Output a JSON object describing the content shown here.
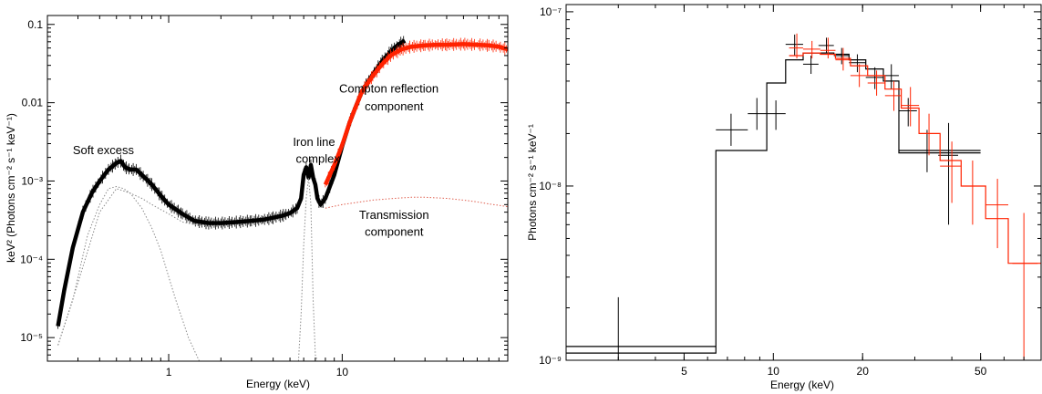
{
  "colors": {
    "black": "#000000",
    "red": "#ff2200",
    "grey": "#8a8a8a",
    "red_dotted": "#e06050"
  },
  "chart_data": [
    {
      "type": "line",
      "xlabel": "Energy (keV)",
      "ylabel": "keV² (Photons cm⁻² s⁻¹ keV⁻¹)",
      "x_scale": "log",
      "y_scale": "log",
      "xlim": [
        0.2,
        90
      ],
      "ylim": [
        5e-06,
        0.13
      ],
      "x_ticks": [
        {
          "v": 1,
          "label": "1"
        },
        {
          "v": 10,
          "label": "10"
        }
      ],
      "y_ticks": [
        {
          "v": 0.1,
          "label": "0.1"
        },
        {
          "v": 0.01,
          "label": "0.01"
        },
        {
          "v": 0.001,
          "label": "10⁻³"
        },
        {
          "v": 0.0001,
          "label": "10⁻⁴"
        },
        {
          "v": 1e-05,
          "label": "10⁻⁵"
        }
      ],
      "annotations": [
        {
          "text": "Soft excess",
          "x": 0.28,
          "y": 0.0022
        },
        {
          "text": "Iron line",
          "x": 5.2,
          "y": 0.0028
        },
        {
          "text": "complex",
          "x": 5.4,
          "y": 0.0017
        },
        {
          "text": "Compton reflection",
          "x": 9.6,
          "y": 0.0135
        },
        {
          "text": "component",
          "x": 13.5,
          "y": 0.008
        },
        {
          "text": "Transmission",
          "x": 12.5,
          "y": 0.00033
        },
        {
          "text": "component",
          "x": 13.5,
          "y": 0.0002
        }
      ],
      "series": [
        {
          "color": "black",
          "style": "data",
          "x": [
            0.23,
            0.25,
            0.28,
            0.32,
            0.36,
            0.4,
            0.45,
            0.5,
            0.53,
            0.56,
            0.6,
            0.65,
            0.7,
            0.8,
            0.9,
            1.0,
            1.2,
            1.4,
            1.7,
            2.0,
            2.5,
            3.0,
            3.5,
            4.0,
            4.5,
            5.0,
            5.5,
            5.8,
            6.0,
            6.2,
            6.4,
            6.6,
            6.8,
            7.0,
            7.2,
            7.5,
            8.0,
            9.0,
            10,
            11,
            12,
            13,
            15,
            17,
            19,
            21,
            23
          ],
          "y": [
            1.4e-05,
            4e-05,
            0.00014,
            0.0004,
            0.0007,
            0.001,
            0.0014,
            0.0017,
            0.0018,
            0.0015,
            0.0014,
            0.0014,
            0.0012,
            0.0009,
            0.00065,
            0.0005,
            0.00038,
            0.00031,
            0.00029,
            0.00029,
            0.0003,
            0.00031,
            0.00032,
            0.00034,
            0.00036,
            0.00039,
            0.00045,
            0.0006,
            0.0012,
            0.0015,
            0.0011,
            0.0016,
            0.0011,
            0.0009,
            0.0006,
            0.0005,
            0.0006,
            0.0012,
            0.0028,
            0.0055,
            0.009,
            0.014,
            0.023,
            0.034,
            0.045,
            0.055,
            0.062
          ]
        },
        {
          "color": "red",
          "style": "data",
          "x": [
            8.0,
            9.0,
            10,
            11,
            12,
            13,
            15,
            17,
            19,
            22,
            25,
            30,
            35,
            40,
            50,
            60,
            70,
            80,
            90
          ],
          "y": [
            0.0009,
            0.0016,
            0.0029,
            0.0055,
            0.009,
            0.014,
            0.022,
            0.031,
            0.04,
            0.048,
            0.052,
            0.054,
            0.055,
            0.055,
            0.056,
            0.055,
            0.054,
            0.052,
            0.048
          ]
        },
        {
          "color": "grey",
          "style": "dotted",
          "x": [
            0.23,
            0.28,
            0.34,
            0.4,
            0.45,
            0.5,
            0.55,
            0.6,
            0.7,
            0.8,
            0.9,
            1.0,
            1.1,
            1.2,
            1.3,
            1.4,
            1.5
          ],
          "y": [
            8e-06,
            3e-05,
            0.0002,
            0.0005,
            0.0008,
            0.00085,
            0.0008,
            0.0007,
            0.00045,
            0.00025,
            0.00013,
            6e-05,
            3e-05,
            1.7e-05,
            1e-05,
            7e-06,
            5e-06
          ]
        },
        {
          "color": "grey",
          "style": "dotted",
          "x": [
            0.23,
            0.3,
            0.4,
            0.5,
            0.6,
            0.7,
            0.8,
            1.0,
            1.2,
            1.5,
            2.0
          ],
          "y": [
            8e-06,
            5e-05,
            0.0004,
            0.0008,
            0.0007,
            0.0006,
            0.0005,
            0.00038,
            0.0003,
            0.00027,
            0.00027
          ]
        },
        {
          "color": "grey",
          "style": "dotted",
          "x": [
            5.6,
            5.8,
            6.0,
            6.2,
            6.4,
            6.6,
            6.8,
            7.0,
            7.2
          ],
          "y": [
            5e-06,
            2e-05,
            0.00015,
            0.0006,
            0.0011,
            0.0005,
            3e-05,
            6e-06,
            5e-06
          ]
        },
        {
          "color": "red_dotted",
          "style": "dotted",
          "x": [
            8.0,
            10,
            12,
            15,
            20,
            25,
            30,
            40,
            50,
            60,
            70,
            80,
            90
          ],
          "y": [
            0.00045,
            0.0005,
            0.00053,
            0.00057,
            0.0006,
            0.00062,
            0.00062,
            0.0006,
            0.00057,
            0.00054,
            0.00051,
            0.00049,
            0.00047
          ]
        }
      ]
    },
    {
      "type": "line",
      "xlabel": "Energy (keV)",
      "ylabel": "Photons cm⁻² s⁻¹ keV⁻¹",
      "x_scale": "log",
      "y_scale": "log",
      "xlim": [
        2.0,
        80
      ],
      "ylim": [
        1e-09,
        1.1e-07
      ],
      "x_ticks": [
        {
          "v": 5,
          "label": "5"
        },
        {
          "v": 10,
          "label": "10"
        },
        {
          "v": 20,
          "label": "20"
        },
        {
          "v": 50,
          "label": "50"
        }
      ],
      "y_ticks": [
        {
          "v": 1e-07,
          "label": "10⁻⁷"
        },
        {
          "v": 1e-08,
          "label": "10⁻⁸"
        },
        {
          "v": 1e-09,
          "label": "10⁻⁹"
        }
      ],
      "series": [
        {
          "color": "black",
          "style": "errorbars",
          "points": [
            {
              "x": 3.0,
              "y": 1.05e-09,
              "xlo": 3.0,
              "xhi": 3.0,
              "ylo": 1e-09,
              "yhi": 2.3e-09
            },
            {
              "x": 7.2,
              "y": 2.1e-08,
              "xlo": 6.4,
              "xhi": 8.2,
              "ylo": 1.7e-08,
              "yhi": 2.6e-08
            },
            {
              "x": 8.8,
              "y": 2.6e-08,
              "xlo": 8.2,
              "xhi": 9.5,
              "ylo": 2.1e-08,
              "yhi": 3.2e-08
            },
            {
              "x": 10.2,
              "y": 2.6e-08,
              "xlo": 9.5,
              "xhi": 11.0,
              "ylo": 2.1e-08,
              "yhi": 3.1e-08
            },
            {
              "x": 11.8,
              "y": 6.5e-08,
              "xlo": 11.0,
              "xhi": 12.6,
              "ylo": 5.6e-08,
              "yhi": 7.4e-08
            },
            {
              "x": 13.4,
              "y": 5e-08,
              "xlo": 12.6,
              "xhi": 14.2,
              "ylo": 4.4e-08,
              "yhi": 5.6e-08
            },
            {
              "x": 15.1,
              "y": 6.4e-08,
              "xlo": 14.2,
              "xhi": 16.0,
              "ylo": 5.8e-08,
              "yhi": 7.1e-08
            },
            {
              "x": 17.0,
              "y": 5.6e-08,
              "xlo": 16.0,
              "xhi": 18.0,
              "ylo": 5e-08,
              "yhi": 6.2e-08
            },
            {
              "x": 19.2,
              "y": 5.1e-08,
              "xlo": 18.0,
              "xhi": 20.5,
              "ylo": 4.5e-08,
              "yhi": 5.7e-08
            },
            {
              "x": 22.0,
              "y": 4.2e-08,
              "xlo": 20.5,
              "xhi": 23.5,
              "ylo": 3.6e-08,
              "yhi": 4.8e-08
            },
            {
              "x": 25.0,
              "y": 4.3e-08,
              "xlo": 23.5,
              "xhi": 26.5,
              "ylo": 3.6e-08,
              "yhi": 5e-08
            },
            {
              "x": 28.5,
              "y": 2.7e-08,
              "xlo": 26.5,
              "xhi": 30.5,
              "ylo": 2.2e-08,
              "yhi": 3.2e-08
            },
            {
              "x": 33.0,
              "y": 1.6e-08,
              "xlo": 30.5,
              "xhi": 36.0,
              "ylo": 1.2e-08,
              "yhi": 2.1e-08
            },
            {
              "x": 39.0,
              "y": 1.5e-08,
              "xlo": 36.0,
              "xhi": 42.0,
              "ylo": 6e-09,
              "yhi": 2.3e-08
            }
          ],
          "step": {
            "edges": [
              1.0,
              6.4,
              9.5,
              11.0,
              12.6,
              14.2,
              16.0,
              18.0,
              20.5,
              23.5,
              26.5,
              50.0
            ],
            "values": [
              1.1e-09,
              1.6e-08,
              3.9e-08,
              5.3e-08,
              5.8e-08,
              5.8e-08,
              5.7e-08,
              5.3e-08,
              4.7e-08,
              4e-08,
              1.55e-08
            ]
          },
          "step_extra": [
            {
              "edges": [
                1.0,
                6.4
              ],
              "values": [
                1.2e-09
              ]
            },
            {
              "edges": [
                26.5,
                50.0
              ],
              "values": [
                1.6e-08
              ]
            }
          ]
        },
        {
          "color": "red",
          "style": "errorbars",
          "points": [
            {
              "x": 12.0,
              "y": 6.2e-08,
              "xlo": 11.3,
              "xhi": 12.6,
              "ylo": 5.4e-08,
              "yhi": 7.5e-08
            },
            {
              "x": 13.5,
              "y": 6.1e-08,
              "xlo": 12.6,
              "xhi": 14.4,
              "ylo": 5.4e-08,
              "yhi": 6.8e-08
            },
            {
              "x": 15.3,
              "y": 6e-08,
              "xlo": 14.4,
              "xhi": 16.2,
              "ylo": 5.4e-08,
              "yhi": 7.1e-08
            },
            {
              "x": 17.2,
              "y": 5.3e-08,
              "xlo": 16.2,
              "xhi": 18.2,
              "ylo": 4.6e-08,
              "yhi": 6.2e-08
            },
            {
              "x": 19.5,
              "y": 4.3e-08,
              "xlo": 18.2,
              "xhi": 20.8,
              "ylo": 3.7e-08,
              "yhi": 5e-08
            },
            {
              "x": 22.3,
              "y": 3.9e-08,
              "xlo": 20.8,
              "xhi": 23.8,
              "ylo": 3.3e-08,
              "yhi": 4.6e-08
            },
            {
              "x": 25.5,
              "y": 3.3e-08,
              "xlo": 23.8,
              "xhi": 27.0,
              "ylo": 2.7e-08,
              "yhi": 4e-08
            },
            {
              "x": 29.0,
              "y": 2.9e-08,
              "xlo": 27.0,
              "xhi": 31.0,
              "ylo": 2.2e-08,
              "yhi": 3.7e-08
            },
            {
              "x": 33.5,
              "y": 2e-08,
              "xlo": 31.0,
              "xhi": 36.5,
              "ylo": 1.5e-08,
              "yhi": 2.6e-08
            },
            {
              "x": 40.0,
              "y": 1.3e-08,
              "xlo": 36.5,
              "xhi": 43.0,
              "ylo": 8e-09,
              "yhi": 1.8e-08
            },
            {
              "x": 47.0,
              "y": 1e-08,
              "xlo": 43.0,
              "xhi": 52.0,
              "ylo": 6e-09,
              "yhi": 1.4e-08
            },
            {
              "x": 57.0,
              "y": 7.8e-09,
              "xlo": 52.0,
              "xhi": 62.0,
              "ylo": 4.4e-09,
              "yhi": 1.1e-08
            },
            {
              "x": 70.0,
              "y": 3.6e-09,
              "xlo": 64.0,
              "xhi": 78.0,
              "ylo": 1e-09,
              "yhi": 7e-09
            }
          ],
          "step": {
            "edges": [
              11.3,
              12.6,
              14.4,
              16.2,
              18.2,
              20.8,
              23.8,
              27.0,
              31.0,
              36.5,
              43.0,
              52.0,
              62.0,
              80.0
            ],
            "values": [
              5.6e-08,
              5.8e-08,
              5.7e-08,
              5.4e-08,
              4.9e-08,
              4.3e-08,
              3.6e-08,
              2.8e-08,
              2e-08,
              1.4e-08,
              1e-08,
              6.5e-09,
              3.6e-09
            ]
          }
        }
      ]
    }
  ]
}
